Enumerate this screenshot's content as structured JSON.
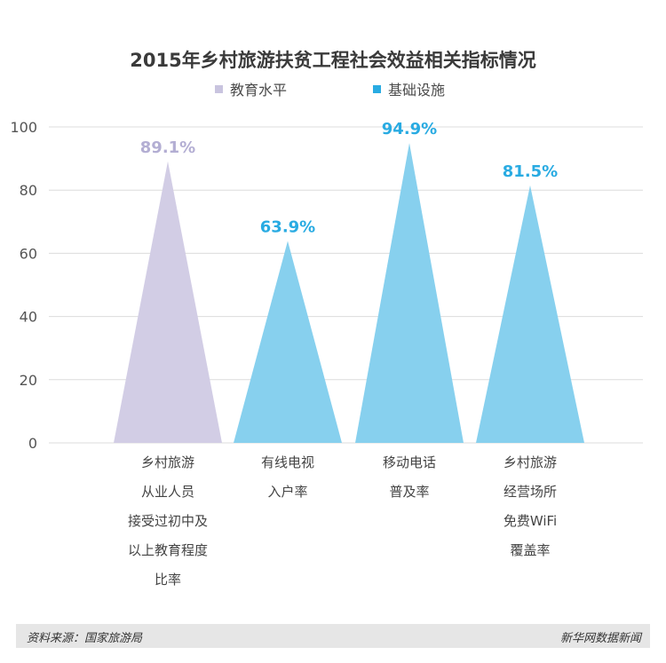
{
  "chart_data": {
    "type": "bar",
    "title": "2015年乡村旅游扶贫工程社会效益相关指标情况",
    "ylim": [
      0,
      100
    ],
    "yticks": [
      "0",
      "20",
      "40",
      "60",
      "80",
      "100"
    ],
    "ytick_values": [
      0,
      20,
      40,
      60,
      80,
      100
    ],
    "grid": true,
    "legend_placement": "top-center",
    "legend": [
      {
        "name": "教育水平",
        "color": "#c9c4df"
      },
      {
        "name": "基础设施",
        "color": "#29abe2"
      }
    ],
    "bars": [
      {
        "category_lines": [
          "乡村旅游",
          "从业人员",
          "接受过初中及",
          "以上教育程度",
          "比率"
        ],
        "value": 89.1,
        "label": "89.1%",
        "series": "教育水平",
        "fill": "#d2cde5",
        "label_color": "#b3aed3"
      },
      {
        "category_lines": [
          "有线电视",
          "入户率"
        ],
        "value": 63.9,
        "label": "63.9%",
        "series": "基础设施",
        "fill": "#87d0ee",
        "label_color": "#29abe2"
      },
      {
        "category_lines": [
          "移动电话",
          "普及率"
        ],
        "value": 94.9,
        "label": "94.9%",
        "series": "基础设施",
        "fill": "#87d0ee",
        "label_color": "#29abe2"
      },
      {
        "category_lines": [
          "乡村旅游",
          "经营场所",
          "免费WiFi",
          "覆盖率"
        ],
        "value": 81.5,
        "label": "81.5%",
        "series": "基础设施",
        "fill": "#87d0ee",
        "label_color": "#29abe2"
      }
    ]
  },
  "footer": {
    "source": "资料来源：国家旅游局",
    "brand": "新华网数据新闻"
  }
}
